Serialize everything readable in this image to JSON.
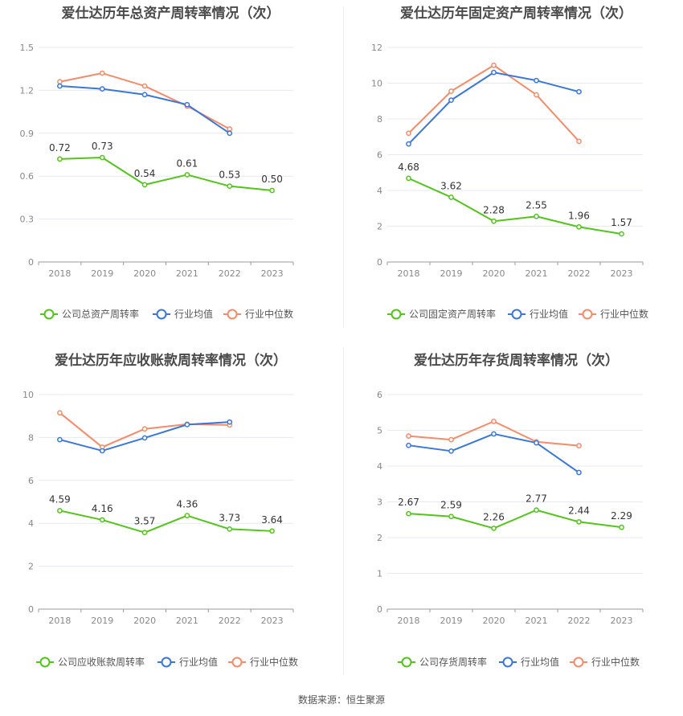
{
  "colors": {
    "company": "#52c41a",
    "industry_avg": "#3a77d8",
    "industry_median": "#f28c6a",
    "grid": "#e6e9f0",
    "axis": "#999999",
    "tick_text": "#888888",
    "label_text": "#333333"
  },
  "source_text": "数据来源：恒生聚源",
  "chart_data": [
    {
      "type": "line",
      "title": "爱仕达历年总资产周转率情况（次）",
      "categories": [
        "2018",
        "2019",
        "2020",
        "2021",
        "2022",
        "2023"
      ],
      "ylim": [
        0,
        1.5
      ],
      "yticks": [
        "0",
        "0.3",
        "0.6",
        "0.9",
        "1.2",
        "1.5"
      ],
      "series": [
        {
          "name": "公司总资产周转率",
          "key": "company",
          "values": [
            0.72,
            0.73,
            0.54,
            0.61,
            0.53,
            0.5
          ],
          "labels": [
            "0.72",
            "0.73",
            "0.54",
            "0.61",
            "0.53",
            "0.50"
          ]
        },
        {
          "name": "行业均值",
          "key": "industry_avg",
          "values": [
            1.23,
            1.21,
            1.17,
            1.1,
            0.9,
            null
          ]
        },
        {
          "name": "行业中位数",
          "key": "industry_median",
          "values": [
            1.26,
            1.32,
            1.23,
            1.09,
            0.93,
            null
          ]
        }
      ],
      "legend": "bottom"
    },
    {
      "type": "line",
      "title": "爱仕达历年固定资产周转率情况（次）",
      "categories": [
        "2018",
        "2019",
        "2020",
        "2021",
        "2022",
        "2023"
      ],
      "ylim": [
        0,
        12
      ],
      "yticks": [
        "0",
        "2",
        "4",
        "6",
        "8",
        "10",
        "12"
      ],
      "series": [
        {
          "name": "公司固定资产周转率",
          "key": "company",
          "values": [
            4.68,
            3.62,
            2.28,
            2.55,
            1.96,
            1.57
          ],
          "labels": [
            "4.68",
            "3.62",
            "2.28",
            "2.55",
            "1.96",
            "1.57"
          ]
        },
        {
          "name": "行业均值",
          "key": "industry_avg",
          "values": [
            6.6,
            9.05,
            10.6,
            10.15,
            9.52,
            null
          ]
        },
        {
          "name": "行业中位数",
          "key": "industry_median",
          "values": [
            7.2,
            9.55,
            11.0,
            9.35,
            6.75,
            null
          ]
        }
      ],
      "legend": "bottom"
    },
    {
      "type": "line",
      "title": "爱仕达历年应收账款周转率情况（次）",
      "categories": [
        "2018",
        "2019",
        "2020",
        "2021",
        "2022",
        "2023"
      ],
      "ylim": [
        0,
        10
      ],
      "yticks": [
        "0",
        "2",
        "4",
        "6",
        "8",
        "10"
      ],
      "series": [
        {
          "name": "公司应收账款周转率",
          "key": "company",
          "values": [
            4.59,
            4.16,
            3.57,
            4.36,
            3.73,
            3.64
          ],
          "labels": [
            "4.59",
            "4.16",
            "3.57",
            "4.36",
            "3.73",
            "3.64"
          ]
        },
        {
          "name": "行业均值",
          "key": "industry_avg",
          "values": [
            7.9,
            7.38,
            7.98,
            8.6,
            8.72,
            null
          ]
        },
        {
          "name": "行业中位数",
          "key": "industry_median",
          "values": [
            9.15,
            7.55,
            8.4,
            8.62,
            8.58,
            null
          ]
        }
      ],
      "legend": "bottom"
    },
    {
      "type": "line",
      "title": "爱仕达历年存货周转率情况（次）",
      "categories": [
        "2018",
        "2019",
        "2020",
        "2021",
        "2022",
        "2023"
      ],
      "ylim": [
        0,
        6
      ],
      "yticks": [
        "0",
        "1",
        "2",
        "3",
        "4",
        "5",
        "6"
      ],
      "series": [
        {
          "name": "公司存货周转率",
          "key": "company",
          "values": [
            2.67,
            2.59,
            2.26,
            2.77,
            2.44,
            2.29
          ],
          "labels": [
            "2.67",
            "2.59",
            "2.26",
            "2.77",
            "2.44",
            "2.29"
          ]
        },
        {
          "name": "行业均值",
          "key": "industry_avg",
          "values": [
            4.58,
            4.42,
            4.9,
            4.65,
            3.82,
            null
          ]
        },
        {
          "name": "行业中位数",
          "key": "industry_median",
          "values": [
            4.84,
            4.74,
            5.25,
            4.68,
            4.57,
            null
          ]
        }
      ],
      "legend": "bottom"
    }
  ]
}
